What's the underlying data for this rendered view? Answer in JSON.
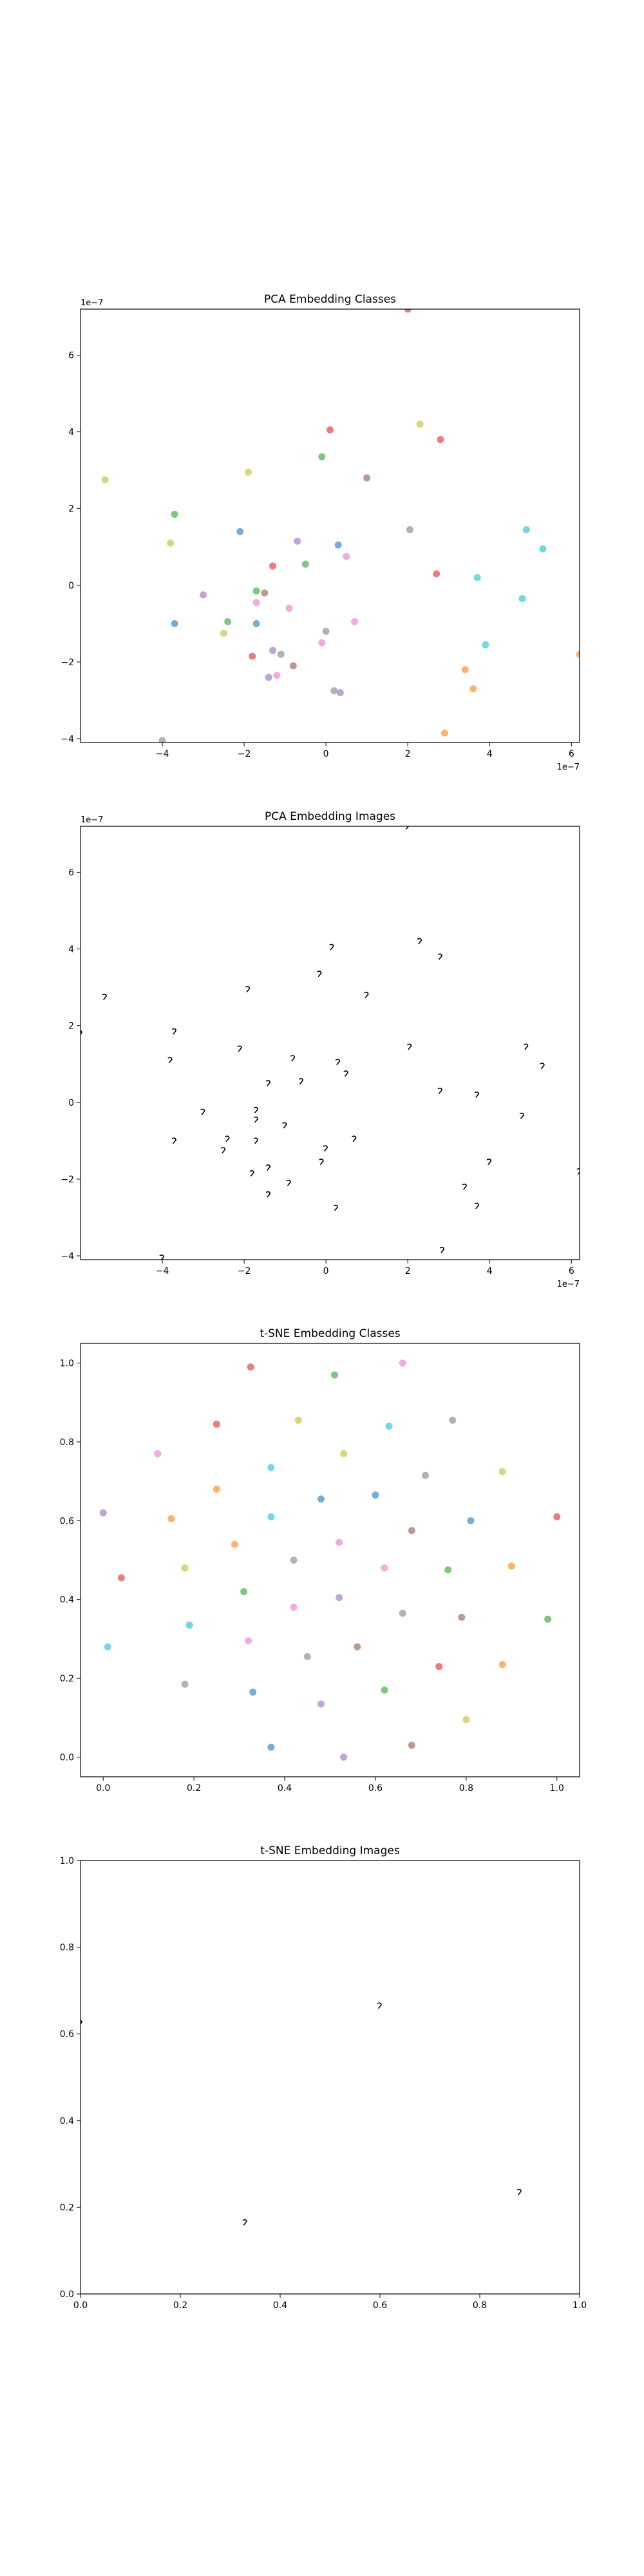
{
  "palette": {
    "blue": "#1f77b4",
    "orange": "#ff7f0e",
    "green": "#2ca02c",
    "red": "#d62728",
    "purple": "#9467bd",
    "brown": "#8c564b",
    "pink": "#e377c2",
    "gray": "#7f7f7f",
    "olive": "#bcbd22",
    "cyan": "#17becf"
  },
  "chart_data": [
    {
      "type": "scatter",
      "title": "PCA Embedding Classes",
      "xlabel": "",
      "ylabel": "",
      "x_offset_text": "1e−7",
      "y_offset_text": "1e−7",
      "xlim": [
        -6.0,
        6.2
      ],
      "ylim": [
        -4.1,
        7.2
      ],
      "xticks": [
        -4,
        -2,
        0,
        2,
        4,
        6
      ],
      "yticks": [
        -4,
        -2,
        0,
        2,
        4,
        6
      ],
      "tick_labels_x": [
        "−4",
        "−2",
        "0",
        "2",
        "4",
        "6"
      ],
      "tick_labels_y": [
        "−4",
        "−2",
        "0",
        "2",
        "4",
        "6"
      ],
      "grid": false,
      "marker_alpha": 0.6,
      "points": [
        {
          "x": -5.4,
          "y": 2.75,
          "c": "olive"
        },
        {
          "x": -3.7,
          "y": 1.85,
          "c": "green"
        },
        {
          "x": -3.8,
          "y": 1.1,
          "c": "olive"
        },
        {
          "x": -3.7,
          "y": -1.0,
          "c": "blue"
        },
        {
          "x": -3.0,
          "y": -0.25,
          "c": "purple"
        },
        {
          "x": -2.5,
          "y": -1.25,
          "c": "olive"
        },
        {
          "x": -2.4,
          "y": -0.95,
          "c": "green"
        },
        {
          "x": -2.1,
          "y": 1.4,
          "c": "blue"
        },
        {
          "x": -1.9,
          "y": 2.95,
          "c": "olive"
        },
        {
          "x": -1.8,
          "y": -1.85,
          "c": "red"
        },
        {
          "x": -1.7,
          "y": -0.15,
          "c": "green"
        },
        {
          "x": -1.7,
          "y": -1.0,
          "c": "blue"
        },
        {
          "x": -1.7,
          "y": -0.45,
          "c": "pink"
        },
        {
          "x": -1.5,
          "y": -0.2,
          "c": "brown"
        },
        {
          "x": -1.4,
          "y": -2.4,
          "c": "purple"
        },
        {
          "x": -1.3,
          "y": 0.5,
          "c": "red"
        },
        {
          "x": -1.3,
          "y": -1.7,
          "c": "purple"
        },
        {
          "x": -1.2,
          "y": -2.35,
          "c": "pink"
        },
        {
          "x": -1.1,
          "y": -1.8,
          "c": "gray"
        },
        {
          "x": -0.9,
          "y": -0.6,
          "c": "pink"
        },
        {
          "x": -0.8,
          "y": -2.1,
          "c": "brown"
        },
        {
          "x": -0.7,
          "y": 1.15,
          "c": "purple"
        },
        {
          "x": -0.5,
          "y": 0.55,
          "c": "green"
        },
        {
          "x": -0.1,
          "y": 3.35,
          "c": "green"
        },
        {
          "x": -0.1,
          "y": -1.5,
          "c": "pink"
        },
        {
          "x": 0.0,
          "y": -1.2,
          "c": "gray"
        },
        {
          "x": 0.1,
          "y": 4.05,
          "c": "red"
        },
        {
          "x": 0.2,
          "y": -2.75,
          "c": "gray"
        },
        {
          "x": 0.3,
          "y": 1.05,
          "c": "blue"
        },
        {
          "x": 0.35,
          "y": -2.8,
          "c": "purple"
        },
        {
          "x": 0.5,
          "y": 0.75,
          "c": "pink"
        },
        {
          "x": 0.7,
          "y": -0.95,
          "c": "pink"
        },
        {
          "x": 1.0,
          "y": 2.8,
          "c": "brown"
        },
        {
          "x": 2.0,
          "y": 7.2,
          "c": "red"
        },
        {
          "x": 2.05,
          "y": 1.45,
          "c": "gray"
        },
        {
          "x": 2.3,
          "y": 4.2,
          "c": "olive"
        },
        {
          "x": 2.7,
          "y": 0.3,
          "c": "red"
        },
        {
          "x": 2.8,
          "y": 3.8,
          "c": "red"
        },
        {
          "x": 2.9,
          "y": -3.85,
          "c": "orange"
        },
        {
          "x": 3.4,
          "y": -2.2,
          "c": "orange"
        },
        {
          "x": 3.6,
          "y": -2.7,
          "c": "orange"
        },
        {
          "x": 3.7,
          "y": 0.2,
          "c": "cyan"
        },
        {
          "x": 3.9,
          "y": -1.55,
          "c": "cyan"
        },
        {
          "x": 4.8,
          "y": -0.35,
          "c": "cyan"
        },
        {
          "x": 4.9,
          "y": 1.45,
          "c": "cyan"
        },
        {
          "x": 5.3,
          "y": 0.95,
          "c": "cyan"
        },
        {
          "x": 6.2,
          "y": -1.8,
          "c": "orange"
        },
        {
          "x": -4.0,
          "y": -4.05,
          "c": "gray"
        }
      ]
    },
    {
      "type": "scatter",
      "title": "PCA Embedding Images",
      "xlabel": "",
      "ylabel": "",
      "x_offset_text": "1e−7",
      "y_offset_text": "1e−7",
      "xlim": [
        -6.0,
        6.2
      ],
      "ylim": [
        -4.1,
        7.2
      ],
      "xticks": [
        -4,
        -2,
        0,
        2,
        4,
        6
      ],
      "yticks": [
        -4,
        -2,
        0,
        2,
        4,
        6
      ],
      "tick_labels_x": [
        "−4",
        "−2",
        "0",
        "2",
        "4",
        "6"
      ],
      "tick_labels_y": [
        "−4",
        "−2",
        "0",
        "2",
        "4",
        "6"
      ],
      "grid": false,
      "marker": "digit-glyph",
      "points": [
        {
          "x": -5.4,
          "y": 2.75
        },
        {
          "x": -6.0,
          "y": 1.8
        },
        {
          "x": -3.7,
          "y": 1.85
        },
        {
          "x": -3.8,
          "y": 1.1
        },
        {
          "x": -3.7,
          "y": -1.0
        },
        {
          "x": -3.0,
          "y": -0.25
        },
        {
          "x": -2.5,
          "y": -1.25
        },
        {
          "x": -2.4,
          "y": -0.95
        },
        {
          "x": -2.1,
          "y": 1.4
        },
        {
          "x": -1.9,
          "y": 2.95
        },
        {
          "x": -1.8,
          "y": -1.85
        },
        {
          "x": -1.7,
          "y": -0.2
        },
        {
          "x": -1.7,
          "y": -1.0
        },
        {
          "x": -1.7,
          "y": -0.45
        },
        {
          "x": -1.4,
          "y": -2.4
        },
        {
          "x": -1.4,
          "y": 0.5
        },
        {
          "x": -1.4,
          "y": -1.7
        },
        {
          "x": -1.0,
          "y": -0.6
        },
        {
          "x": -0.9,
          "y": -2.1
        },
        {
          "x": -0.8,
          "y": 1.15
        },
        {
          "x": -0.6,
          "y": 0.55
        },
        {
          "x": -0.15,
          "y": 3.35
        },
        {
          "x": -0.1,
          "y": -1.55
        },
        {
          "x": 0.0,
          "y": -1.2
        },
        {
          "x": 0.15,
          "y": 4.05
        },
        {
          "x": 0.25,
          "y": -2.75
        },
        {
          "x": 0.3,
          "y": 1.05
        },
        {
          "x": 0.5,
          "y": 0.75
        },
        {
          "x": 0.7,
          "y": -0.95
        },
        {
          "x": 1.0,
          "y": 2.8
        },
        {
          "x": 2.0,
          "y": 7.2
        },
        {
          "x": 2.05,
          "y": 1.45
        },
        {
          "x": 2.3,
          "y": 4.2
        },
        {
          "x": 2.8,
          "y": 0.3
        },
        {
          "x": 2.8,
          "y": 3.8
        },
        {
          "x": 2.85,
          "y": -3.85
        },
        {
          "x": 3.4,
          "y": -2.2
        },
        {
          "x": 3.7,
          "y": -2.7
        },
        {
          "x": 3.7,
          "y": 0.2
        },
        {
          "x": 4.0,
          "y": -1.55
        },
        {
          "x": 4.8,
          "y": -0.35
        },
        {
          "x": 4.9,
          "y": 1.45
        },
        {
          "x": 5.3,
          "y": 0.95
        },
        {
          "x": 6.2,
          "y": -1.8
        },
        {
          "x": -4.0,
          "y": -4.05
        }
      ]
    },
    {
      "type": "scatter",
      "title": "t-SNE Embedding Classes",
      "xlabel": "",
      "ylabel": "",
      "xlim": [
        -0.05,
        1.05
      ],
      "ylim": [
        -0.05,
        1.05
      ],
      "xticks": [
        0.0,
        0.2,
        0.4,
        0.6,
        0.8,
        1.0
      ],
      "yticks": [
        0.0,
        0.2,
        0.4,
        0.6,
        0.8,
        1.0
      ],
      "tick_labels_x": [
        "0.0",
        "0.2",
        "0.4",
        "0.6",
        "0.8",
        "1.0"
      ],
      "tick_labels_y": [
        "0.0",
        "0.2",
        "0.4",
        "0.6",
        "0.8",
        "1.0"
      ],
      "grid": false,
      "marker_alpha": 0.6,
      "points": [
        {
          "x": 0.325,
          "y": 0.99,
          "c": "red"
        },
        {
          "x": 0.51,
          "y": 0.97,
          "c": "green"
        },
        {
          "x": 0.66,
          "y": 1.0,
          "c": "pink"
        },
        {
          "x": 0.25,
          "y": 0.845,
          "c": "red"
        },
        {
          "x": 0.43,
          "y": 0.855,
          "c": "olive"
        },
        {
          "x": 0.63,
          "y": 0.84,
          "c": "cyan"
        },
        {
          "x": 0.77,
          "y": 0.855,
          "c": "gray"
        },
        {
          "x": 0.12,
          "y": 0.77,
          "c": "pink"
        },
        {
          "x": 0.53,
          "y": 0.77,
          "c": "olive"
        },
        {
          "x": 0.37,
          "y": 0.735,
          "c": "cyan"
        },
        {
          "x": 0.71,
          "y": 0.715,
          "c": "gray"
        },
        {
          "x": 0.88,
          "y": 0.725,
          "c": "olive"
        },
        {
          "x": 0.25,
          "y": 0.68,
          "c": "orange"
        },
        {
          "x": 0.48,
          "y": 0.655,
          "c": "blue"
        },
        {
          "x": 0.6,
          "y": 0.665,
          "c": "blue"
        },
        {
          "x": 0.0,
          "y": 0.62,
          "c": "purple"
        },
        {
          "x": 0.15,
          "y": 0.605,
          "c": "orange"
        },
        {
          "x": 0.37,
          "y": 0.61,
          "c": "cyan"
        },
        {
          "x": 0.68,
          "y": 0.575,
          "c": "brown"
        },
        {
          "x": 0.81,
          "y": 0.6,
          "c": "blue"
        },
        {
          "x": 1.0,
          "y": 0.61,
          "c": "red"
        },
        {
          "x": 0.29,
          "y": 0.54,
          "c": "orange"
        },
        {
          "x": 0.52,
          "y": 0.545,
          "c": "pink"
        },
        {
          "x": 0.42,
          "y": 0.5,
          "c": "gray"
        },
        {
          "x": 0.18,
          "y": 0.48,
          "c": "olive"
        },
        {
          "x": 0.62,
          "y": 0.48,
          "c": "pink"
        },
        {
          "x": 0.76,
          "y": 0.475,
          "c": "green"
        },
        {
          "x": 0.9,
          "y": 0.485,
          "c": "orange"
        },
        {
          "x": 0.04,
          "y": 0.455,
          "c": "red"
        },
        {
          "x": 0.31,
          "y": 0.42,
          "c": "green"
        },
        {
          "x": 0.52,
          "y": 0.405,
          "c": "purple"
        },
        {
          "x": 0.42,
          "y": 0.38,
          "c": "pink"
        },
        {
          "x": 0.66,
          "y": 0.365,
          "c": "gray"
        },
        {
          "x": 0.79,
          "y": 0.355,
          "c": "brown"
        },
        {
          "x": 0.19,
          "y": 0.335,
          "c": "cyan"
        },
        {
          "x": 0.98,
          "y": 0.35,
          "c": "green"
        },
        {
          "x": 0.01,
          "y": 0.28,
          "c": "cyan"
        },
        {
          "x": 0.32,
          "y": 0.295,
          "c": "pink"
        },
        {
          "x": 0.56,
          "y": 0.28,
          "c": "brown"
        },
        {
          "x": 0.45,
          "y": 0.255,
          "c": "gray"
        },
        {
          "x": 0.74,
          "y": 0.23,
          "c": "red"
        },
        {
          "x": 0.88,
          "y": 0.235,
          "c": "orange"
        },
        {
          "x": 0.18,
          "y": 0.185,
          "c": "gray"
        },
        {
          "x": 0.33,
          "y": 0.165,
          "c": "blue"
        },
        {
          "x": 0.62,
          "y": 0.17,
          "c": "green"
        },
        {
          "x": 0.48,
          "y": 0.135,
          "c": "purple"
        },
        {
          "x": 0.8,
          "y": 0.095,
          "c": "olive"
        },
        {
          "x": 0.37,
          "y": 0.025,
          "c": "blue"
        },
        {
          "x": 0.68,
          "y": 0.03,
          "c": "brown"
        },
        {
          "x": 0.53,
          "y": 0.0,
          "c": "purple"
        }
      ]
    },
    {
      "type": "scatter",
      "title": "t-SNE Embedding Images",
      "xlabel": "",
      "ylabel": "",
      "xlim": [
        0.0,
        1.0
      ],
      "ylim": [
        0.0,
        1.0
      ],
      "xticks": [
        0.0,
        0.2,
        0.4,
        0.6,
        0.8,
        1.0
      ],
      "yticks": [
        0.0,
        0.2,
        0.4,
        0.6,
        0.8,
        1.0
      ],
      "tick_labels_x": [
        "0.0",
        "0.2",
        "0.4",
        "0.6",
        "0.8",
        "1.0"
      ],
      "tick_labels_y": [
        "0.0",
        "0.2",
        "0.4",
        "0.6",
        "0.8",
        "1.0"
      ],
      "grid": false,
      "marker": "digit-glyph",
      "points": [
        {
          "x": 0.0,
          "y": 0.625
        },
        {
          "x": 0.6,
          "y": 0.665
        },
        {
          "x": 0.33,
          "y": 0.165
        },
        {
          "x": 0.88,
          "y": 0.235
        }
      ]
    }
  ]
}
